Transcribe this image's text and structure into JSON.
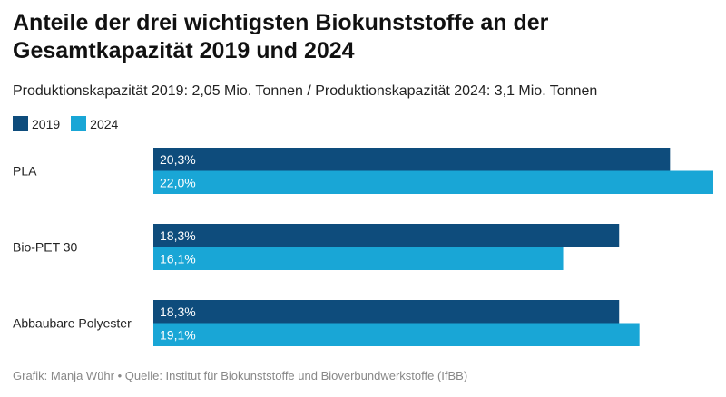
{
  "chart_data": {
    "type": "bar",
    "orientation": "horizontal",
    "title": "Anteile der drei wichtigsten Biokunststoffe an der Gesamtkapazität 2019 und 2024",
    "subtitle": "Produktionskapazität 2019: 2,05 Mio. Tonnen / Produktionskapazität 2024: 3,1 Mio. Tonnen",
    "categories": [
      "PLA",
      "Bio-PET 30",
      "Abbaubare Polyester"
    ],
    "series": [
      {
        "name": "2019",
        "color": "#0e4c7c",
        "values": [
          20.3,
          18.3,
          18.3
        ],
        "labels": [
          "20,3%",
          "18,3%",
          "18,3%"
        ]
      },
      {
        "name": "2024",
        "color": "#19a6d6",
        "values": [
          22.0,
          16.1,
          19.1
        ],
        "labels": [
          "22,0%",
          "16,1%",
          "19,1%"
        ]
      }
    ],
    "xlim": [
      0,
      22.0
    ],
    "grid": false,
    "legend_position": "top-left",
    "source": "Grafik: Manja Wühr • Quelle: Institut für Biokunststoffe und Bioverbundwerkstoffe (IfBB)"
  }
}
